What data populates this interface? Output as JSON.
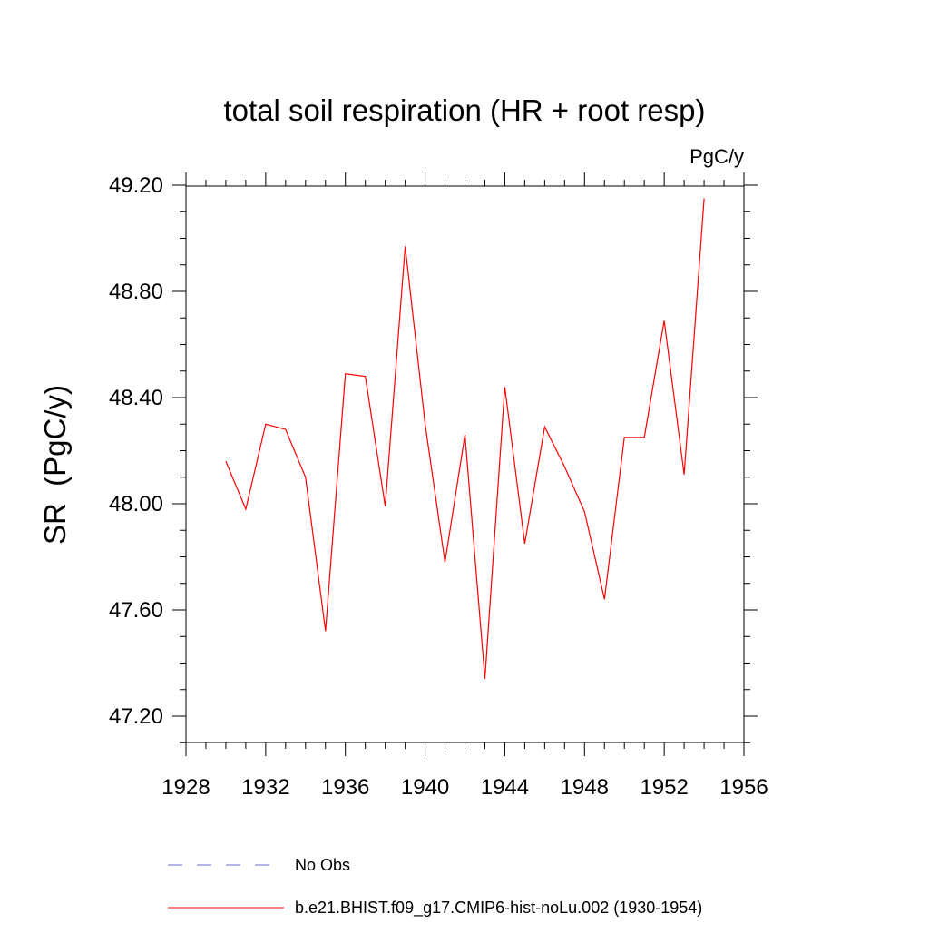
{
  "chart_data": {
    "type": "line",
    "title": "total soil respiration (HR + root resp)",
    "units_label": "PgC/y",
    "ylabel": "SR  (PgC/y)",
    "xlabel": "",
    "xlim": [
      1928,
      1956
    ],
    "ylim": [
      47.1,
      49.25
    ],
    "x_ticks": [
      1928,
      1932,
      1936,
      1940,
      1944,
      1948,
      1952,
      1956
    ],
    "x_tick_labels": [
      "1928",
      "1932",
      "1936",
      "1940",
      "1944",
      "1948",
      "1952",
      "1956"
    ],
    "y_ticks": [
      47.2,
      47.6,
      48.0,
      48.4,
      48.8,
      49.2
    ],
    "y_tick_labels": [
      "47.20",
      "47.60",
      "48.00",
      "48.40",
      "48.80",
      "49.20"
    ],
    "x_minor_step": 1,
    "y_minor_step": 0.1,
    "grid": false,
    "series": [
      {
        "name": "b.e21.BHIST.f09_g17.CMIP6-hist-noLu.002 (1930-1954)",
        "color": "#ff0000",
        "style": "solid",
        "x": [
          1930,
          1931,
          1932,
          1933,
          1934,
          1935,
          1936,
          1937,
          1938,
          1939,
          1940,
          1941,
          1942,
          1943,
          1944,
          1945,
          1946,
          1947,
          1948,
          1949,
          1950,
          1951,
          1952,
          1953,
          1954
        ],
        "y": [
          48.16,
          47.98,
          48.3,
          48.28,
          48.1,
          47.52,
          48.49,
          48.48,
          47.99,
          48.97,
          48.3,
          47.78,
          48.26,
          47.34,
          48.44,
          47.85,
          48.29,
          48.14,
          47.97,
          47.64,
          48.25,
          48.25,
          48.69,
          48.11,
          49.15
        ]
      }
    ],
    "legend": {
      "placement": "bottom",
      "entries": [
        {
          "label": "No Obs",
          "color": "#6a6acd",
          "style": "dashed"
        },
        {
          "label": "b.e21.BHIST.f09_g17.CMIP6-hist-noLu.002 (1930-1954)",
          "color": "#ff0000",
          "style": "solid"
        }
      ]
    }
  }
}
